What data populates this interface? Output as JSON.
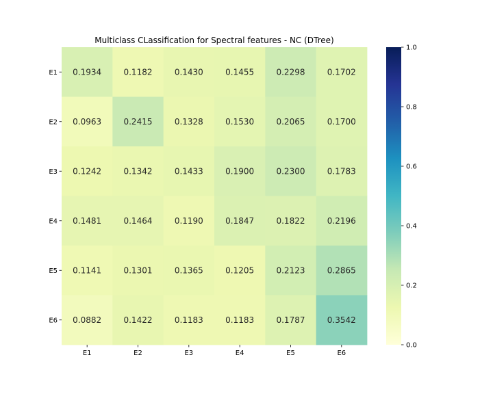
{
  "chart_data": {
    "type": "heatmap",
    "title": "Multiclass CLassification for Spectral features - NC (DTree)",
    "xlabel": "",
    "ylabel": "",
    "x_categories": [
      "E1",
      "E2",
      "E3",
      "E4",
      "E5",
      "E6"
    ],
    "y_categories": [
      "E1",
      "E2",
      "E3",
      "E4",
      "E5",
      "E6"
    ],
    "values": [
      [
        0.1934,
        0.1182,
        0.143,
        0.1455,
        0.2298,
        0.1702
      ],
      [
        0.0963,
        0.2415,
        0.1328,
        0.153,
        0.2065,
        0.17
      ],
      [
        0.1242,
        0.1342,
        0.1433,
        0.19,
        0.23,
        0.1783
      ],
      [
        0.1481,
        0.1464,
        0.119,
        0.1847,
        0.1822,
        0.2196
      ],
      [
        0.1141,
        0.1301,
        0.1365,
        0.1205,
        0.2123,
        0.2865
      ],
      [
        0.0882,
        0.1422,
        0.1183,
        0.1183,
        0.1787,
        0.3542
      ]
    ],
    "value_format": "4 decimals",
    "colormap": "YlGnBu",
    "colormap_stops": [
      "#ffffd9",
      "#edf8b1",
      "#c7e9b4",
      "#7fcdbb",
      "#41b6c4",
      "#1d91c0",
      "#225ea8",
      "#253494",
      "#081d58"
    ],
    "vmin": 0.0,
    "vmax": 1.0,
    "colorbar_ticks": [
      "0.0",
      "0.2",
      "0.4",
      "0.6",
      "0.8",
      "1.0"
    ],
    "colorbar_tick_values": [
      0.0,
      0.2,
      0.4,
      0.6,
      0.8,
      1.0
    ],
    "grid": false,
    "legend": "colorbar-right"
  }
}
